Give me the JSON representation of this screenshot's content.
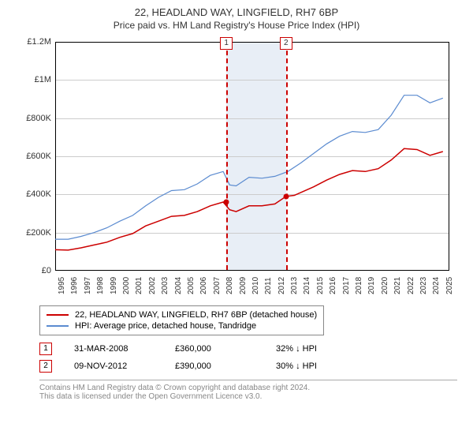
{
  "title": {
    "main": "22, HEADLAND WAY, LINGFIELD, RH7 6BP",
    "sub": "Price paid vs. HM Land Registry's House Price Index (HPI)",
    "fontsize_main": 13,
    "fontsize_sub": 12,
    "color": "#333333"
  },
  "chart": {
    "type": "line",
    "background_color": "#ffffff",
    "grid_color": "#cccccc",
    "axis_color": "#000000",
    "ylim": [
      0,
      1200000
    ],
    "ytick_step": 200000,
    "ytick_labels": [
      "£0",
      "£200K",
      "£400K",
      "£600K",
      "£800K",
      "£1M",
      "£1.2M"
    ],
    "xtick_years": [
      1995,
      1996,
      1997,
      1998,
      1999,
      2000,
      2001,
      2002,
      2003,
      2004,
      2005,
      2006,
      2007,
      2008,
      2009,
      2010,
      2011,
      2012,
      2013,
      2014,
      2015,
      2016,
      2017,
      2018,
      2019,
      2020,
      2021,
      2022,
      2023,
      2024,
      2025
    ],
    "x_domain": [
      1995,
      2025.5
    ],
    "band": {
      "start": 2008.25,
      "end": 2012.86,
      "color": "#e8eef6"
    },
    "series": [
      {
        "name": "property",
        "label": "22, HEADLAND WAY, LINGFIELD, RH7 6BP (detached house)",
        "color": "#cc0000",
        "line_width": 1.5,
        "points": [
          [
            1995,
            110000
          ],
          [
            1996,
            108000
          ],
          [
            1997,
            120000
          ],
          [
            1998,
            135000
          ],
          [
            1999,
            150000
          ],
          [
            2000,
            175000
          ],
          [
            2001,
            195000
          ],
          [
            2002,
            235000
          ],
          [
            2003,
            260000
          ],
          [
            2004,
            285000
          ],
          [
            2005,
            290000
          ],
          [
            2006,
            310000
          ],
          [
            2007,
            340000
          ],
          [
            2008,
            360000
          ],
          [
            2008.5,
            320000
          ],
          [
            2009,
            310000
          ],
          [
            2010,
            340000
          ],
          [
            2011,
            340000
          ],
          [
            2012,
            350000
          ],
          [
            2012.86,
            390000
          ],
          [
            2013.5,
            395000
          ],
          [
            2014,
            410000
          ],
          [
            2015,
            440000
          ],
          [
            2016,
            475000
          ],
          [
            2017,
            505000
          ],
          [
            2018,
            525000
          ],
          [
            2019,
            520000
          ],
          [
            2020,
            535000
          ],
          [
            2021,
            580000
          ],
          [
            2022,
            640000
          ],
          [
            2023,
            635000
          ],
          [
            2024,
            605000
          ],
          [
            2025,
            625000
          ]
        ]
      },
      {
        "name": "hpi",
        "label": "HPI: Average price, detached house, Tandridge",
        "color": "#5b8bd0",
        "line_width": 1.2,
        "points": [
          [
            1995,
            165000
          ],
          [
            1996,
            165000
          ],
          [
            1997,
            180000
          ],
          [
            1998,
            200000
          ],
          [
            1999,
            225000
          ],
          [
            2000,
            260000
          ],
          [
            2001,
            290000
          ],
          [
            2002,
            340000
          ],
          [
            2003,
            385000
          ],
          [
            2004,
            420000
          ],
          [
            2005,
            425000
          ],
          [
            2006,
            455000
          ],
          [
            2007,
            500000
          ],
          [
            2008,
            520000
          ],
          [
            2008.5,
            450000
          ],
          [
            2009,
            445000
          ],
          [
            2010,
            490000
          ],
          [
            2011,
            485000
          ],
          [
            2012,
            495000
          ],
          [
            2013,
            520000
          ],
          [
            2014,
            565000
          ],
          [
            2015,
            615000
          ],
          [
            2016,
            665000
          ],
          [
            2017,
            705000
          ],
          [
            2018,
            730000
          ],
          [
            2019,
            725000
          ],
          [
            2020,
            740000
          ],
          [
            2021,
            815000
          ],
          [
            2022,
            920000
          ],
          [
            2023,
            920000
          ],
          [
            2024,
            880000
          ],
          [
            2025,
            905000
          ]
        ]
      }
    ],
    "markers": [
      {
        "n": "1",
        "x": 2008.25,
        "y": 360000,
        "line_color": "#cc0000",
        "dot_color": "#cc0000"
      },
      {
        "n": "2",
        "x": 2012.86,
        "y": 390000,
        "line_color": "#cc0000",
        "dot_color": "#cc0000"
      }
    ]
  },
  "legend": {
    "items": [
      {
        "label": "22, HEADLAND WAY, LINGFIELD, RH7 6BP (detached house)",
        "color": "#cc0000"
      },
      {
        "label": "HPI: Average price, detached house, Tandridge",
        "color": "#5b8bd0"
      }
    ],
    "border_color": "#888888",
    "fontsize": 11
  },
  "events": [
    {
      "n": "1",
      "date": "31-MAR-2008",
      "price": "£360,000",
      "delta": "32% ↓ HPI"
    },
    {
      "n": "2",
      "date": "09-NOV-2012",
      "price": "£390,000",
      "delta": "30% ↓ HPI"
    }
  ],
  "footer": {
    "line1": "Contains HM Land Registry data © Crown copyright and database right 2024.",
    "line2": "This data is licensed under the Open Government Licence v3.0.",
    "color": "#888888",
    "border_color": "#aaaaaa"
  }
}
